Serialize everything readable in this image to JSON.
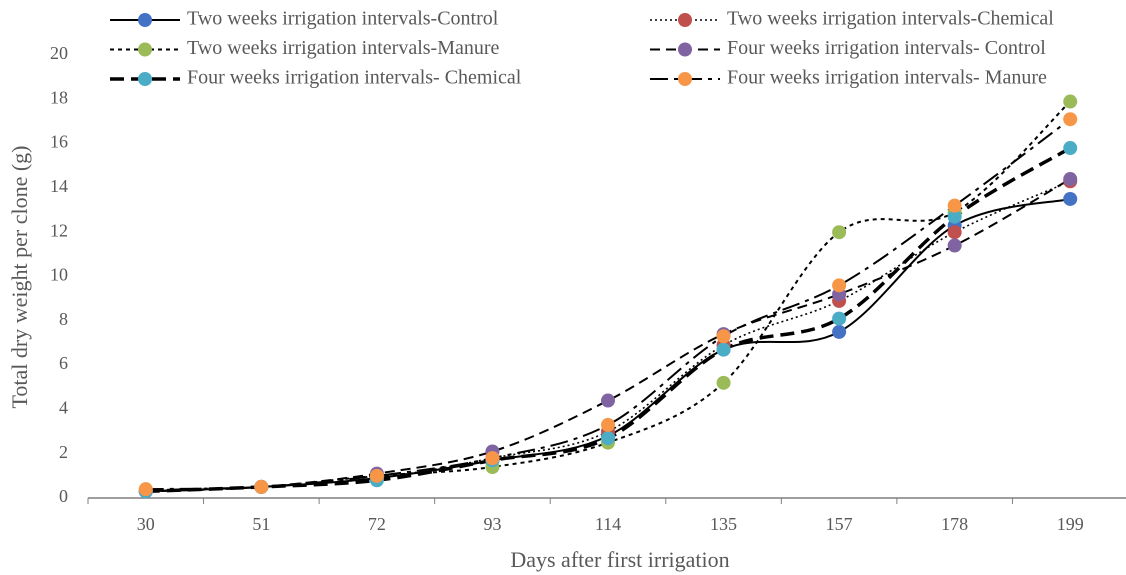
{
  "chart_data": {
    "type": "line",
    "x_label": "Days after first irrigation",
    "y_label": "Total  dry weight per clone (g)",
    "categories": [
      "30",
      "51",
      "72",
      "93",
      "114",
      "135",
      "157",
      "178",
      "199"
    ],
    "ylim": [
      0,
      20
    ],
    "yticks": [
      0,
      2,
      4,
      6,
      8,
      10,
      12,
      14,
      16,
      18,
      20
    ],
    "smooth": true,
    "series": [
      {
        "name": "Two weeks irrigation intervals-Control",
        "color": "#4472c4",
        "line_style": "solid",
        "values": [
          0.3,
          0.5,
          0.9,
          1.7,
          2.8,
          6.7,
          7.5,
          12.3,
          13.5
        ]
      },
      {
        "name": "Two weeks irrigation intervals-Chemical",
        "color": "#c0504d",
        "line_style": "dotted",
        "values": [
          0.3,
          0.5,
          0.9,
          1.8,
          3.0,
          6.9,
          8.9,
          12.0,
          14.3
        ]
      },
      {
        "name": "Two weeks irrigation intervals-Manure",
        "color": "#9bbb59",
        "line_style": "short-dash",
        "values": [
          0.3,
          0.5,
          1.0,
          1.4,
          2.5,
          5.2,
          12.0,
          12.9,
          17.9
        ]
      },
      {
        "name": "Four weeks irrigation intervals- Control",
        "color": "#8064a2",
        "line_style": "dash",
        "values": [
          0.3,
          0.5,
          1.1,
          2.1,
          4.4,
          7.4,
          9.2,
          11.4,
          14.4
        ]
      },
      {
        "name": "Four weeks irrigation intervals- Chemical",
        "color": "#4bacc6",
        "line_style": "thick-dash",
        "values": [
          0.3,
          0.5,
          0.8,
          1.7,
          2.7,
          6.7,
          8.1,
          12.7,
          15.8
        ]
      },
      {
        "name": "Four weeks irrigation intervals- Manure",
        "color": "#f79646",
        "line_style": "dash-dot",
        "values": [
          0.4,
          0.5,
          1.0,
          1.8,
          3.3,
          7.3,
          9.6,
          13.2,
          17.1
        ]
      }
    ]
  }
}
